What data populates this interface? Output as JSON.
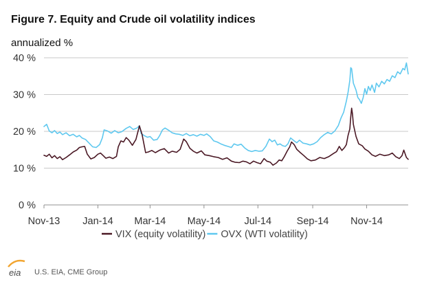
{
  "colors": {
    "vix": "#4a1824",
    "ovx": "#5ec8ef",
    "grid": "#c8c8c8",
    "axis": "#909090"
  },
  "header": {
    "title": "Figure 7. Equity and Crude oil volatility indices",
    "unit": "annualized %"
  },
  "footer": {
    "source": "U.S. EIA, CME Group",
    "logo_text": "eia"
  },
  "chart_data": {
    "type": "line",
    "title": "Figure 7. Equity and Crude oil volatility indices",
    "ylabel": "annualized %",
    "ylim": [
      0,
      40
    ],
    "y_ticks": [
      "0 %",
      "10 %",
      "20 %",
      "30 %",
      "40 %"
    ],
    "y_tick_values": [
      0,
      10,
      20,
      30,
      40
    ],
    "x_range": [
      "2013-11-01",
      "2014-12-18"
    ],
    "x_ticks": [
      "Nov-13",
      "Jan-14",
      "Mar-14",
      "May-14",
      "Jul-14",
      "Sep-14",
      "Nov-14"
    ],
    "x_tick_dates": [
      "2013-11-01",
      "2014-01-01",
      "2014-03-01",
      "2014-05-01",
      "2014-07-01",
      "2014-09-01",
      "2014-11-01"
    ],
    "grid": true,
    "legend_position": "bottom",
    "series": [
      {
        "name": "VIX (equity volatility)",
        "color": "#4a1824",
        "points": [
          [
            "2013-11-01",
            13.5
          ],
          [
            "2013-11-04",
            13.2
          ],
          [
            "2013-11-07",
            13.8
          ],
          [
            "2013-11-10",
            12.8
          ],
          [
            "2013-11-13",
            13.4
          ],
          [
            "2013-11-16",
            12.6
          ],
          [
            "2013-11-19",
            13.1
          ],
          [
            "2013-11-22",
            12.3
          ],
          [
            "2013-11-26",
            12.9
          ],
          [
            "2013-11-30",
            13.6
          ],
          [
            "2013-12-04",
            14.4
          ],
          [
            "2013-12-08",
            14.9
          ],
          [
            "2013-12-11",
            15.6
          ],
          [
            "2013-12-14",
            15.8
          ],
          [
            "2013-12-17",
            15.9
          ],
          [
            "2013-12-20",
            13.8
          ],
          [
            "2013-12-24",
            12.5
          ],
          [
            "2013-12-28",
            12.9
          ],
          [
            "2014-01-01",
            13.8
          ],
          [
            "2014-01-04",
            14.1
          ],
          [
            "2014-01-07",
            13.4
          ],
          [
            "2014-01-10",
            12.7
          ],
          [
            "2014-01-14",
            13.0
          ],
          [
            "2014-01-18",
            12.6
          ],
          [
            "2014-01-22",
            13.2
          ],
          [
            "2014-01-24",
            15.8
          ],
          [
            "2014-01-27",
            17.4
          ],
          [
            "2014-01-30",
            17.1
          ],
          [
            "2014-02-02",
            18.3
          ],
          [
            "2014-02-05",
            17.6
          ],
          [
            "2014-02-09",
            16.2
          ],
          [
            "2014-02-13",
            17.8
          ],
          [
            "2014-02-17",
            21.5
          ],
          [
            "2014-02-20",
            19.1
          ],
          [
            "2014-02-24",
            14.2
          ],
          [
            "2014-02-27",
            14.4
          ],
          [
            "2014-03-03",
            14.8
          ],
          [
            "2014-03-07",
            14.2
          ],
          [
            "2014-03-12",
            14.9
          ],
          [
            "2014-03-17",
            15.3
          ],
          [
            "2014-03-22",
            14.1
          ],
          [
            "2014-03-26",
            14.6
          ],
          [
            "2014-03-31",
            14.3
          ],
          [
            "2014-04-04",
            15.1
          ],
          [
            "2014-04-08",
            17.9
          ],
          [
            "2014-04-11",
            17.2
          ],
          [
            "2014-04-15",
            15.4
          ],
          [
            "2014-04-19",
            14.6
          ],
          [
            "2014-04-23",
            14.1
          ],
          [
            "2014-04-28",
            14.7
          ],
          [
            "2014-05-02",
            13.6
          ],
          [
            "2014-05-07",
            13.4
          ],
          [
            "2014-05-12",
            13.1
          ],
          [
            "2014-05-17",
            12.9
          ],
          [
            "2014-05-22",
            12.4
          ],
          [
            "2014-05-27",
            12.8
          ],
          [
            "2014-06-01",
            11.9
          ],
          [
            "2014-06-05",
            11.6
          ],
          [
            "2014-06-10",
            11.5
          ],
          [
            "2014-06-14",
            11.9
          ],
          [
            "2014-06-18",
            11.7
          ],
          [
            "2014-06-22",
            11.2
          ],
          [
            "2014-06-26",
            11.9
          ],
          [
            "2014-06-30",
            11.5
          ],
          [
            "2014-07-04",
            11.2
          ],
          [
            "2014-07-08",
            12.6
          ],
          [
            "2014-07-11",
            11.9
          ],
          [
            "2014-07-15",
            11.6
          ],
          [
            "2014-07-18",
            10.8
          ],
          [
            "2014-07-22",
            11.4
          ],
          [
            "2014-07-25",
            12.2
          ],
          [
            "2014-07-28",
            12.0
          ],
          [
            "2014-07-31",
            13.2
          ],
          [
            "2014-08-03",
            14.6
          ],
          [
            "2014-08-06",
            15.8
          ],
          [
            "2014-08-08",
            17.1
          ],
          [
            "2014-08-11",
            16.4
          ],
          [
            "2014-08-14",
            15.1
          ],
          [
            "2014-08-18",
            14.2
          ],
          [
            "2014-08-22",
            13.4
          ],
          [
            "2014-08-26",
            12.5
          ],
          [
            "2014-08-30",
            12.0
          ],
          [
            "2014-09-04",
            12.2
          ],
          [
            "2014-09-09",
            12.9
          ],
          [
            "2014-09-14",
            12.6
          ],
          [
            "2014-09-19",
            13.1
          ],
          [
            "2014-09-24",
            13.9
          ],
          [
            "2014-09-28",
            14.5
          ],
          [
            "2014-10-01",
            15.9
          ],
          [
            "2014-10-04",
            14.8
          ],
          [
            "2014-10-07",
            15.6
          ],
          [
            "2014-10-09",
            16.4
          ],
          [
            "2014-10-11",
            18.9
          ],
          [
            "2014-10-13",
            20.7
          ],
          [
            "2014-10-14",
            23.9
          ],
          [
            "2014-10-15",
            26.3
          ],
          [
            "2014-10-16",
            24.6
          ],
          [
            "2014-10-17",
            21.9
          ],
          [
            "2014-10-20",
            18.6
          ],
          [
            "2014-10-23",
            16.6
          ],
          [
            "2014-10-27",
            16.1
          ],
          [
            "2014-10-30",
            15.2
          ],
          [
            "2014-11-03",
            14.6
          ],
          [
            "2014-11-07",
            13.6
          ],
          [
            "2014-11-11",
            13.2
          ],
          [
            "2014-11-16",
            13.8
          ],
          [
            "2014-11-21",
            13.4
          ],
          [
            "2014-11-26",
            13.6
          ],
          [
            "2014-11-30",
            14.1
          ],
          [
            "2014-12-04",
            13.1
          ],
          [
            "2014-12-08",
            12.6
          ],
          [
            "2014-12-11",
            13.4
          ],
          [
            "2014-12-13",
            14.9
          ],
          [
            "2014-12-16",
            12.9
          ],
          [
            "2014-12-18",
            12.4
          ]
        ]
      },
      {
        "name": "OVX (WTI volatility)",
        "color": "#5ec8ef",
        "points": [
          [
            "2013-11-01",
            21.3
          ],
          [
            "2013-11-04",
            21.9
          ],
          [
            "2013-11-07",
            20.1
          ],
          [
            "2013-11-10",
            19.6
          ],
          [
            "2013-11-13",
            20.2
          ],
          [
            "2013-11-16",
            19.4
          ],
          [
            "2013-11-19",
            19.8
          ],
          [
            "2013-11-22",
            19.1
          ],
          [
            "2013-11-26",
            19.6
          ],
          [
            "2013-11-30",
            18.8
          ],
          [
            "2013-12-04",
            19.2
          ],
          [
            "2013-12-08",
            18.5
          ],
          [
            "2013-12-11",
            18.9
          ],
          [
            "2013-12-14",
            18.2
          ],
          [
            "2013-12-18",
            17.8
          ],
          [
            "2013-12-22",
            16.8
          ],
          [
            "2013-12-26",
            15.8
          ],
          [
            "2013-12-30",
            15.6
          ],
          [
            "2014-01-03",
            16.4
          ],
          [
            "2014-01-06",
            18.2
          ],
          [
            "2014-01-08",
            20.4
          ],
          [
            "2014-01-12",
            20.1
          ],
          [
            "2014-01-16",
            19.5
          ],
          [
            "2014-01-20",
            20.2
          ],
          [
            "2014-01-24",
            19.6
          ],
          [
            "2014-01-28",
            19.9
          ],
          [
            "2014-02-02",
            20.8
          ],
          [
            "2014-02-06",
            21.3
          ],
          [
            "2014-02-10",
            20.5
          ],
          [
            "2014-02-14",
            20.9
          ],
          [
            "2014-02-17",
            21.5
          ],
          [
            "2014-02-19",
            19.4
          ],
          [
            "2014-02-22",
            18.9
          ],
          [
            "2014-02-26",
            18.4
          ],
          [
            "2014-03-01",
            18.6
          ],
          [
            "2014-03-05",
            17.6
          ],
          [
            "2014-03-09",
            17.8
          ],
          [
            "2014-03-12",
            18.9
          ],
          [
            "2014-03-15",
            20.4
          ],
          [
            "2014-03-18",
            20.9
          ],
          [
            "2014-03-22",
            20.3
          ],
          [
            "2014-03-26",
            19.6
          ],
          [
            "2014-03-30",
            19.3
          ],
          [
            "2014-04-03",
            19.2
          ],
          [
            "2014-04-07",
            18.9
          ],
          [
            "2014-04-11",
            19.4
          ],
          [
            "2014-04-15",
            18.8
          ],
          [
            "2014-04-19",
            19.1
          ],
          [
            "2014-04-23",
            18.7
          ],
          [
            "2014-04-27",
            19.2
          ],
          [
            "2014-05-01",
            18.9
          ],
          [
            "2014-05-04",
            19.3
          ],
          [
            "2014-05-08",
            18.6
          ],
          [
            "2014-05-12",
            17.4
          ],
          [
            "2014-05-16",
            17.1
          ],
          [
            "2014-05-20",
            16.6
          ],
          [
            "2014-05-24",
            16.2
          ],
          [
            "2014-05-28",
            15.9
          ],
          [
            "2014-06-01",
            15.6
          ],
          [
            "2014-06-04",
            16.6
          ],
          [
            "2014-06-08",
            16.2
          ],
          [
            "2014-06-12",
            16.5
          ],
          [
            "2014-06-16",
            15.5
          ],
          [
            "2014-06-20",
            14.8
          ],
          [
            "2014-06-24",
            14.5
          ],
          [
            "2014-06-28",
            14.8
          ],
          [
            "2014-07-02",
            14.6
          ],
          [
            "2014-07-06",
            14.7
          ],
          [
            "2014-07-10",
            15.9
          ],
          [
            "2014-07-14",
            17.9
          ],
          [
            "2014-07-17",
            17.2
          ],
          [
            "2014-07-20",
            17.6
          ],
          [
            "2014-07-23",
            16.3
          ],
          [
            "2014-07-26",
            16.6
          ],
          [
            "2014-07-29",
            16.1
          ],
          [
            "2014-08-01",
            15.9
          ],
          [
            "2014-08-04",
            16.6
          ],
          [
            "2014-08-07",
            18.2
          ],
          [
            "2014-08-11",
            17.4
          ],
          [
            "2014-08-14",
            16.9
          ],
          [
            "2014-08-17",
            17.6
          ],
          [
            "2014-08-21",
            16.8
          ],
          [
            "2014-08-25",
            16.6
          ],
          [
            "2014-08-29",
            16.3
          ],
          [
            "2014-09-02",
            16.6
          ],
          [
            "2014-09-06",
            17.2
          ],
          [
            "2014-09-10",
            18.3
          ],
          [
            "2014-09-14",
            19.1
          ],
          [
            "2014-09-18",
            19.7
          ],
          [
            "2014-09-22",
            19.3
          ],
          [
            "2014-09-26",
            20.1
          ],
          [
            "2014-09-30",
            21.6
          ],
          [
            "2014-10-03",
            23.6
          ],
          [
            "2014-10-06",
            25.2
          ],
          [
            "2014-10-09",
            28.2
          ],
          [
            "2014-10-11",
            30.6
          ],
          [
            "2014-10-13",
            33.9
          ],
          [
            "2014-10-14",
            37.3
          ],
          [
            "2014-10-15",
            37.0
          ],
          [
            "2014-10-17",
            33.1
          ],
          [
            "2014-10-20",
            31.2
          ],
          [
            "2014-10-22",
            29.2
          ],
          [
            "2014-10-24",
            28.6
          ],
          [
            "2014-10-26",
            27.6
          ],
          [
            "2014-10-28",
            29.1
          ],
          [
            "2014-10-30",
            31.6
          ],
          [
            "2014-11-01",
            30.1
          ],
          [
            "2014-11-03",
            32.2
          ],
          [
            "2014-11-05",
            31.1
          ],
          [
            "2014-11-07",
            32.6
          ],
          [
            "2014-11-10",
            30.6
          ],
          [
            "2014-11-12",
            33.1
          ],
          [
            "2014-11-15",
            32.1
          ],
          [
            "2014-11-18",
            33.6
          ],
          [
            "2014-11-21",
            32.9
          ],
          [
            "2014-11-24",
            34.1
          ],
          [
            "2014-11-27",
            33.6
          ],
          [
            "2014-11-30",
            35.1
          ],
          [
            "2014-12-03",
            34.6
          ],
          [
            "2014-12-06",
            36.2
          ],
          [
            "2014-12-09",
            35.6
          ],
          [
            "2014-12-12",
            37.1
          ],
          [
            "2014-12-14",
            36.7
          ],
          [
            "2014-12-16",
            38.6
          ],
          [
            "2014-12-18",
            35.6
          ]
        ]
      }
    ]
  }
}
